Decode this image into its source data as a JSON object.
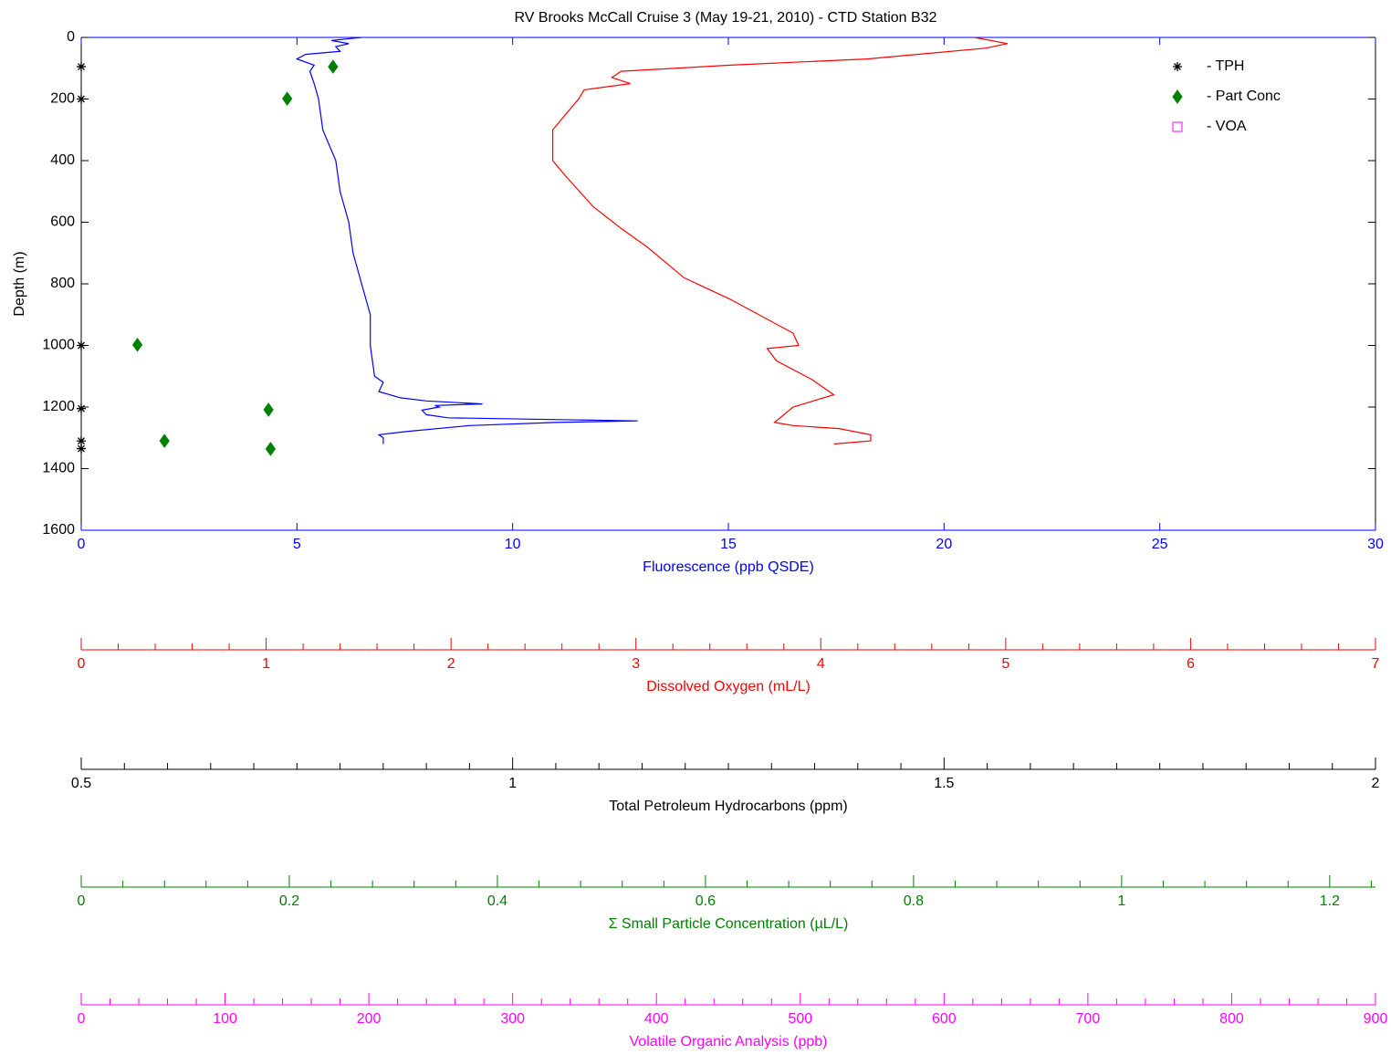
{
  "chart_data": {
    "type": "profile",
    "title": "RV Brooks McCall Cruise 3 (May 19-21, 2010) - CTD Station B32",
    "ylabel": "Depth (m)",
    "ylim": [
      0,
      1600
    ],
    "yticks": [
      0,
      200,
      400,
      600,
      800,
      1000,
      1200,
      1400,
      1600
    ],
    "y_inverted": true,
    "legend": "upper right",
    "x_axes": [
      {
        "label": "Fluorescence (ppb QSDE)",
        "color": "#0000ff",
        "xlim": [
          0,
          30
        ],
        "xticks": [
          0,
          5,
          10,
          15,
          20,
          25,
          30
        ]
      },
      {
        "label": "Dissolved Oxygen (mL/L)",
        "color": "#ff0000",
        "xlim": [
          0,
          7
        ],
        "xticks": [
          0,
          1,
          2,
          3,
          4,
          5,
          6,
          7
        ],
        "minor": 5
      },
      {
        "label": "Total Petroleum Hydrocarbons (ppm)",
        "color": "#000000",
        "xlim": [
          0.5,
          2
        ],
        "xticks": [
          0.5,
          1,
          1.5,
          2
        ],
        "minor": 10
      },
      {
        "label": "Σ Small Particle Concentration (µL/L)",
        "color": "#008000",
        "xlim": [
          0,
          1.244
        ],
        "xticks": [
          0,
          0.2,
          0.4,
          0.6,
          0.8,
          1,
          1.2
        ],
        "minor": 5
      },
      {
        "label": "Volatile Organic Analysis (ppb)",
        "color": "#ff00ff",
        "xlim": [
          0,
          900
        ],
        "xticks": [
          0,
          100,
          200,
          300,
          400,
          500,
          600,
          700,
          800,
          900
        ],
        "minor": 5
      }
    ],
    "series": [
      {
        "marker": "line",
        "axis": 0,
        "color": "#0000ff",
        "values": [
          6.5,
          5.8,
          6.2,
          5.9,
          6.0,
          5.2,
          5.0,
          5.4,
          5.3,
          5.4,
          5.5,
          5.6,
          5.9,
          6.0,
          6.2,
          6.3,
          6.5,
          6.7,
          6.7,
          6.8,
          7.0,
          6.9,
          7.4,
          8.0,
          9.3,
          8.2,
          8.3,
          7.9,
          8.0,
          8.5,
          12.9,
          11.0,
          9.0,
          7.5,
          6.9,
          7.0,
          7.0
        ],
        "depth": [
          0,
          10,
          20,
          30,
          45,
          55,
          70,
          90,
          110,
          150,
          200,
          300,
          400,
          500,
          600,
          700,
          800,
          900,
          1000,
          1100,
          1120,
          1150,
          1170,
          1180,
          1190,
          1195,
          1200,
          1210,
          1225,
          1235,
          1245,
          1250,
          1260,
          1280,
          1290,
          1300,
          1320
        ]
      },
      {
        "marker": "line",
        "axis": 1,
        "color": "#ff0000",
        "values": [
          4.83,
          5.01,
          4.89,
          4.25,
          3.51,
          2.92,
          2.87,
          2.97,
          2.72,
          2.69,
          2.62,
          2.55,
          2.55,
          2.62,
          2.77,
          2.92,
          3.06,
          3.26,
          3.51,
          3.85,
          3.88,
          3.71,
          3.76,
          3.95,
          4.07,
          3.85,
          3.75,
          3.85,
          4.1,
          4.27,
          4.27,
          4.07
        ],
        "depth": [
          0,
          20,
          35,
          70,
          90,
          110,
          130,
          150,
          170,
          200,
          250,
          300,
          400,
          450,
          550,
          620,
          680,
          780,
          850,
          960,
          1000,
          1010,
          1050,
          1110,
          1160,
          1200,
          1250,
          1260,
          1270,
          1290,
          1310,
          1320
        ]
      },
      {
        "name": "- TPH",
        "marker": "star",
        "axis": 2,
        "color": "#000000",
        "values": [
          0.5,
          0.5,
          0.5,
          0.5,
          0.5,
          0.5
        ],
        "depth": [
          95,
          200,
          1000,
          1205,
          1310,
          1335
        ]
      },
      {
        "name": "- Part Conc",
        "marker": "diamond",
        "axis": 3,
        "color": "#008000",
        "values": [
          0.242,
          0.198,
          0.054,
          0.18,
          0.08,
          0.182
        ],
        "depth": [
          95,
          199,
          998,
          1209,
          1310,
          1336
        ]
      },
      {
        "name": "- VOA",
        "marker": "square",
        "axis": 4,
        "color": "#ff00ff",
        "values": [],
        "depth": []
      }
    ]
  }
}
